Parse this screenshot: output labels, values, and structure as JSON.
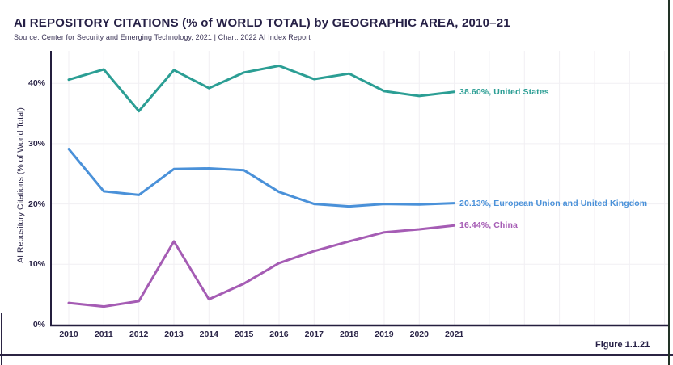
{
  "header": {
    "title": "AI REPOSITORY CITATIONS (% of WORLD TOTAL) by GEOGRAPHIC AREA, 2010–21",
    "source": "Source: Center for Security and Emerging Technology, 2021 | Chart: 2022 AI Index Report"
  },
  "figure_label": "Figure 1.1.21",
  "colors": {
    "title_text": "#262046",
    "grid": "#f1eff3",
    "axis": "#241e3e",
    "teal": "#2b9e94",
    "blue": "#4a91d9",
    "purple": "#a55cb4"
  },
  "chart_data": {
    "type": "line",
    "title": "AI REPOSITORY CITATIONS (% of WORLD TOTAL) by GEOGRAPHIC AREA, 2010–21",
    "xlabel": "",
    "ylabel": "AI Repository Citations (% of World Total)",
    "x": [
      2010,
      2011,
      2012,
      2013,
      2014,
      2015,
      2016,
      2017,
      2018,
      2019,
      2020,
      2021
    ],
    "yticks": [
      "0%",
      "10%",
      "20%",
      "30%",
      "40%"
    ],
    "ytick_values": [
      0,
      10,
      20,
      30,
      40
    ],
    "ylim": [
      0,
      45.4
    ],
    "grid": true,
    "legend_position": "end-of-line-labels",
    "series": [
      {
        "name": "United States",
        "color": "#2b9e94",
        "end_label": "38.60%, United States",
        "end_value": "38.60%",
        "values": [
          40.6,
          42.3,
          35.4,
          42.2,
          39.2,
          41.8,
          42.9,
          40.7,
          41.6,
          38.7,
          37.9,
          38.6
        ]
      },
      {
        "name": "European Union and United Kingdom",
        "color": "#4a91d9",
        "end_label": "20.13%, European Union and United Kingdom",
        "end_value": "20.13%",
        "values": [
          29.1,
          22.1,
          21.5,
          25.8,
          25.9,
          25.6,
          22.0,
          20.0,
          19.6,
          20.0,
          19.9,
          20.13
        ]
      },
      {
        "name": "China",
        "color": "#a55cb4",
        "end_label": "16.44%, China",
        "end_value": "16.44%",
        "values": [
          3.6,
          3.0,
          3.9,
          13.8,
          4.2,
          6.8,
          10.2,
          12.2,
          13.8,
          15.3,
          15.8,
          16.44
        ]
      }
    ]
  }
}
